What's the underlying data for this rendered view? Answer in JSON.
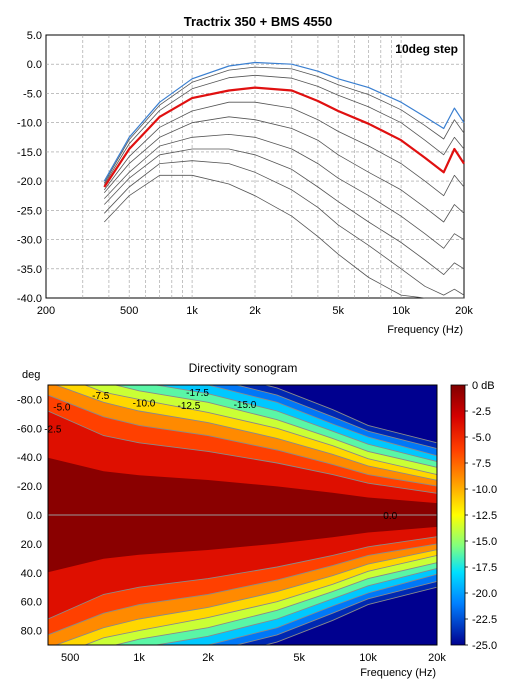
{
  "chart_data": [
    {
      "type": "line",
      "title": "Tractrix 350 + BMS 4550",
      "annotation": "10deg step",
      "xlabel": "Frequency (Hz)",
      "x_scale": "log",
      "xlim": [
        200,
        20000
      ],
      "ylim": [
        -40,
        5
      ],
      "grid": true,
      "x_tick_labels": [
        "200",
        "500",
        "1k",
        "2k",
        "5k",
        "10k",
        "20k"
      ],
      "x_tick_values": [
        200,
        500,
        1000,
        2000,
        5000,
        10000,
        20000
      ],
      "y_tick_labels": [
        "5.0",
        "0.0",
        "-5.0",
        "-10.0",
        "-15.0",
        "-20.0",
        "-25.0",
        "-30.0",
        "-35.0",
        "-40.0"
      ],
      "y_tick_values": [
        5,
        0,
        -5,
        -10,
        -15,
        -20,
        -25,
        -30,
        -35,
        -40
      ],
      "colors": {
        "top": "#3a7fd0",
        "highlight": "#e01010",
        "others": "#555555"
      },
      "x": [
        380,
        500,
        700,
        1000,
        1500,
        2000,
        3000,
        4000,
        5000,
        7000,
        10000,
        13000,
        16000,
        18000,
        20000
      ],
      "series": [
        {
          "role": "top",
          "values": [
            -20.0,
            -12.5,
            -6.5,
            -2.5,
            -0.3,
            0.3,
            0.0,
            -1.2,
            -2.5,
            -4.0,
            -6.5,
            -9.0,
            -11.0,
            -7.5,
            -10.0
          ]
        },
        {
          "values": [
            -20.3,
            -12.9,
            -7.0,
            -3.1,
            -1.0,
            -0.5,
            -0.8,
            -2.1,
            -3.5,
            -5.2,
            -7.8,
            -10.5,
            -12.8,
            -9.5,
            -11.8
          ]
        },
        {
          "values": [
            -20.6,
            -13.6,
            -7.9,
            -4.2,
            -2.3,
            -1.9,
            -2.4,
            -3.8,
            -5.3,
            -7.3,
            -10.0,
            -13.0,
            -15.5,
            -12.5,
            -14.5
          ]
        },
        {
          "role": "highlight",
          "values": [
            -21.0,
            -14.5,
            -9.0,
            -5.8,
            -4.5,
            -4.0,
            -4.5,
            -6.3,
            -8.0,
            -10.2,
            -13.0,
            -16.0,
            -18.5,
            -14.5,
            -17.0
          ]
        },
        {
          "values": [
            -21.5,
            -15.8,
            -10.8,
            -8.0,
            -6.5,
            -6.5,
            -7.5,
            -9.5,
            -11.5,
            -14.0,
            -17.0,
            -20.0,
            -22.5,
            -19.0,
            -21.0
          ]
        },
        {
          "values": [
            -22.0,
            -17.0,
            -12.5,
            -10.0,
            -9.0,
            -9.5,
            -11.0,
            -13.0,
            -15.5,
            -18.5,
            -21.5,
            -24.5,
            -27.0,
            -24.0,
            -25.5
          ]
        },
        {
          "values": [
            -23.0,
            -18.5,
            -14.0,
            -12.5,
            -12.0,
            -12.5,
            -14.5,
            -17.0,
            -19.5,
            -22.5,
            -26.0,
            -29.0,
            -31.5,
            -29.0,
            -30.0
          ]
        },
        {
          "values": [
            -24.0,
            -19.5,
            -15.5,
            -14.5,
            -14.5,
            -15.5,
            -18.0,
            -21.0,
            -23.5,
            -27.0,
            -30.5,
            -33.5,
            -36.0,
            -34.0,
            -35.0
          ]
        },
        {
          "values": [
            -25.5,
            -21.0,
            -17.0,
            -16.5,
            -17.0,
            -18.5,
            -21.5,
            -24.5,
            -27.5,
            -31.0,
            -35.0,
            -38.0,
            -39.5,
            -38.5,
            -39.5
          ]
        },
        {
          "values": [
            -27.0,
            -22.5,
            -19.0,
            -19.0,
            -20.5,
            -22.5,
            -26.0,
            -29.5,
            -32.5,
            -36.5,
            -39.5,
            -40.0,
            -40.0,
            -40.0,
            -40.0
          ]
        }
      ]
    },
    {
      "type": "heatmap",
      "title": "Directivity sonogram",
      "ylabel": "deg",
      "xlabel": "Frequency (Hz)",
      "x_scale": "log",
      "xlim": [
        400,
        20000
      ],
      "ylim": [
        -90,
        90
      ],
      "x_tick_labels": [
        "500",
        "1k",
        "2k",
        "5k",
        "10k",
        "20k"
      ],
      "x_tick_values": [
        500,
        1000,
        2000,
        5000,
        10000,
        20000
      ],
      "y_tick_labels": [
        "-80.0",
        "-60.0",
        "-40.0",
        "-20.0",
        "0.0",
        "20.0",
        "40.0",
        "60.0",
        "80.0"
      ],
      "y_tick_values": [
        -80,
        -60,
        -40,
        -20,
        0,
        20,
        40,
        60,
        80
      ],
      "colorbar_labels": [
        "0 dB",
        "-2.5",
        "-5.0",
        "-7.5",
        "-10.0",
        "-12.5",
        "-15.0",
        "-17.5",
        "-20.0",
        "-22.5",
        "-25.0"
      ],
      "colorbar_values": [
        0,
        -2.5,
        -5,
        -7.5,
        -10,
        -12.5,
        -15,
        -17.5,
        -20,
        -22.5,
        -25
      ],
      "zlim": [
        -25,
        0
      ],
      "contour_labels": [
        {
          "text": "-2.5",
          "freq": 420,
          "deg": -60
        },
        {
          "text": "-5.0",
          "freq": 460,
          "deg": -75
        },
        {
          "text": "-7.5",
          "freq": 680,
          "deg": -83
        },
        {
          "text": "-10.0",
          "freq": 1050,
          "deg": -78
        },
        {
          "text": "-12.5",
          "freq": 1650,
          "deg": -76
        },
        {
          "text": "-17.5",
          "freq": 1800,
          "deg": -85
        },
        {
          "text": "-15.0",
          "freq": 2900,
          "deg": -77
        },
        {
          "text": "0.0",
          "freq": 12500,
          "deg": 0
        }
      ],
      "beamwidth_half_angles_deg": {
        "x": [
          400,
          700,
          1000,
          2000,
          4000,
          7000,
          10000,
          20000
        ],
        "-2.5": [
          72,
          55,
          50,
          44,
          36,
          28,
          22,
          15
        ],
        "-5.0": [
          83,
          68,
          62,
          55,
          45,
          35,
          28,
          20
        ],
        "-7.5": [
          92,
          78,
          72,
          64,
          53,
          42,
          34,
          24
        ],
        "-10.0": [
          100,
          85,
          80,
          71,
          60,
          48,
          39,
          28
        ],
        "-12.5": [
          105,
          92,
          86,
          78,
          66,
          53,
          44,
          33
        ],
        "-15.0": [
          110,
          98,
          92,
          84,
          72,
          58,
          49,
          37
        ],
        "-17.5": [
          115,
          103,
          98,
          90,
          78,
          63,
          54,
          41
        ],
        "-20.0": [
          120,
          108,
          103,
          95,
          83,
          68,
          58,
          46
        ],
        "-22.5": [
          125,
          113,
          108,
          100,
          88,
          73,
          62,
          50
        ]
      }
    }
  ]
}
